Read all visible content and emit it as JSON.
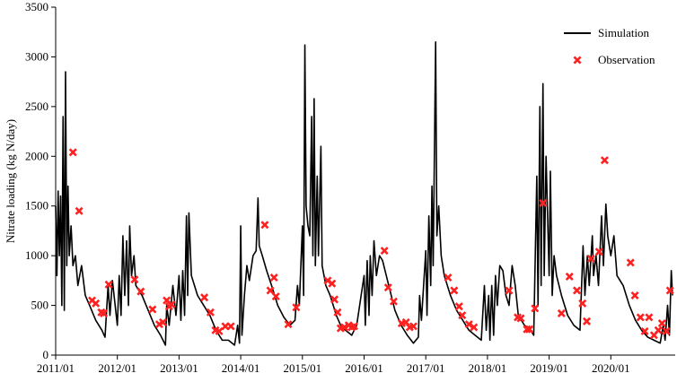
{
  "chart_data": {
    "type": "line",
    "y_label": "Nitrate loading (kg N/day)",
    "xlim": [
      2011,
      2021
    ],
    "xticks": [
      {
        "value": 2011,
        "label": "2011/01"
      },
      {
        "value": 2012,
        "label": "2012/01"
      },
      {
        "value": 2013,
        "label": "2013/01"
      },
      {
        "value": 2014,
        "label": "2014/01"
      },
      {
        "value": 2015,
        "label": "2015/01"
      },
      {
        "value": 2016,
        "label": "2016/01"
      },
      {
        "value": 2017,
        "label": "2017/01"
      },
      {
        "value": 2018,
        "label": "2018/01"
      },
      {
        "value": 2019,
        "label": "2019/01"
      },
      {
        "value": 2020,
        "label": "2020/01"
      }
    ],
    "ylim": [
      0,
      3500
    ],
    "yticks": [
      0,
      500,
      1000,
      1500,
      2000,
      2500,
      3000,
      3500
    ],
    "grid": false,
    "legend": "upper right",
    "series": [
      {
        "name": "Simulation",
        "color": "#000000",
        "mode": "line",
        "x": [
          2011.0,
          2011.02,
          2011.04,
          2011.06,
          2011.08,
          2011.1,
          2011.12,
          2011.14,
          2011.16,
          2011.18,
          2011.2,
          2011.22,
          2011.25,
          2011.28,
          2011.32,
          2011.36,
          2011.42,
          2011.48,
          2011.55,
          2011.65,
          2011.75,
          2011.8,
          2011.85,
          2011.88,
          2011.92,
          2012.0,
          2012.03,
          2012.06,
          2012.09,
          2012.12,
          2012.15,
          2012.18,
          2012.2,
          2012.23,
          2012.27,
          2012.3,
          2012.4,
          2012.5,
          2012.6,
          2012.7,
          2012.78,
          2012.8,
          2012.84,
          2012.9,
          2012.95,
          2013.0,
          2013.03,
          2013.06,
          2013.09,
          2013.12,
          2013.14,
          2013.16,
          2013.2,
          2013.25,
          2013.3,
          2013.4,
          2013.5,
          2013.6,
          2013.7,
          2013.8,
          2013.9,
          2013.95,
          2013.98,
          2014.0,
          2014.02,
          2014.06,
          2014.1,
          2014.14,
          2014.2,
          2014.25,
          2014.28,
          2014.3,
          2014.35,
          2014.42,
          2014.5,
          2014.6,
          2014.7,
          2014.8,
          2014.88,
          2014.92,
          2014.95,
          2015.0,
          2015.02,
          2015.04,
          2015.06,
          2015.09,
          2015.12,
          2015.15,
          2015.17,
          2015.19,
          2015.21,
          2015.24,
          2015.26,
          2015.3,
          2015.32,
          2015.38,
          2015.45,
          2015.55,
          2015.62,
          2015.7,
          2015.8,
          2015.88,
          2016.0,
          2016.02,
          2016.05,
          2016.08,
          2016.1,
          2016.13,
          2016.16,
          2016.2,
          2016.25,
          2016.3,
          2016.4,
          2016.5,
          2016.6,
          2016.7,
          2016.8,
          2016.88,
          2016.9,
          2016.93,
          2017.0,
          2017.02,
          2017.05,
          2017.08,
          2017.1,
          2017.12,
          2017.16,
          2017.18,
          2017.21,
          2017.25,
          2017.3,
          2017.4,
          2017.5,
          2017.6,
          2017.7,
          2017.8,
          2017.9,
          2017.95,
          2017.98,
          2018.02,
          2018.04,
          2018.07,
          2018.1,
          2018.13,
          2018.16,
          2018.2,
          2018.25,
          2018.3,
          2018.35,
          2018.4,
          2018.45,
          2018.5,
          2018.6,
          2018.7,
          2018.75,
          2018.8,
          2018.82,
          2018.85,
          2018.87,
          2018.9,
          2018.92,
          2018.95,
          2019.0,
          2019.02,
          2019.05,
          2019.08,
          2019.12,
          2019.2,
          2019.3,
          2019.4,
          2019.5,
          2019.55,
          2019.58,
          2019.62,
          2019.65,
          2019.7,
          2019.72,
          2019.76,
          2019.8,
          2019.85,
          2019.88,
          2019.92,
          2019.95,
          2020.0,
          2020.05,
          2020.1,
          2020.2,
          2020.3,
          2020.4,
          2020.5,
          2020.6,
          2020.7,
          2020.8,
          2020.85,
          2020.88,
          2020.92,
          2020.95,
          2020.98,
          2021.0
        ],
        "values": [
          1500,
          800,
          1650,
          1000,
          1600,
          500,
          2400,
          450,
          2850,
          900,
          1700,
          1000,
          1300,
          900,
          1000,
          700,
          900,
          600,
          500,
          350,
          250,
          180,
          700,
          400,
          750,
          300,
          800,
          400,
          1200,
          600,
          1150,
          500,
          1300,
          800,
          1000,
          700,
          600,
          450,
          300,
          200,
          100,
          500,
          300,
          700,
          400,
          800,
          350,
          850,
          400,
          1400,
          600,
          1430,
          800,
          700,
          600,
          500,
          400,
          250,
          150,
          150,
          100,
          300,
          120,
          1300,
          200,
          600,
          900,
          750,
          1000,
          1050,
          1580,
          1100,
          1000,
          850,
          700,
          500,
          380,
          300,
          350,
          700,
          500,
          1300,
          600,
          3120,
          1500,
          1300,
          1200,
          2400,
          1000,
          2580,
          900,
          1800,
          1000,
          2100,
          900,
          700,
          600,
          400,
          300,
          250,
          200,
          300,
          800,
          300,
          950,
          400,
          1000,
          600,
          1150,
          800,
          1000,
          950,
          700,
          450,
          300,
          200,
          120,
          180,
          600,
          350,
          1050,
          400,
          1400,
          700,
          1700,
          900,
          3150,
          1200,
          1500,
          1000,
          800,
          600,
          450,
          350,
          250,
          200,
          150,
          700,
          250,
          600,
          150,
          700,
          200,
          800,
          500,
          900,
          850,
          600,
          500,
          900,
          700,
          400,
          300,
          250,
          200,
          1800,
          500,
          2500,
          700,
          2730,
          800,
          2000,
          800,
          1850,
          600,
          1000,
          800,
          600,
          400,
          300,
          250,
          1100,
          600,
          1000,
          700,
          1200,
          800,
          1000,
          700,
          1400,
          900,
          1520,
          1200,
          1000,
          1200,
          800,
          700,
          500,
          350,
          250,
          180,
          150,
          120,
          300,
          150,
          500,
          200,
          850,
          600
        ]
      },
      {
        "name": "Observation",
        "color": "#ff2020",
        "mode": "markers",
        "x": [
          2011.28,
          2011.38,
          2011.59,
          2011.65,
          2011.74,
          2011.78,
          2011.86,
          2012.28,
          2012.38,
          2012.57,
          2012.68,
          2012.74,
          2012.8,
          2012.84,
          2012.88,
          2013.41,
          2013.51,
          2013.59,
          2013.65,
          2013.75,
          2013.84,
          2014.39,
          2014.48,
          2014.54,
          2014.57,
          2014.77,
          2014.9,
          2015.41,
          2015.48,
          2015.52,
          2015.57,
          2015.62,
          2015.68,
          2015.75,
          2015.8,
          2015.84,
          2016.33,
          2016.39,
          2016.48,
          2016.61,
          2016.68,
          2016.74,
          2016.8,
          2017.36,
          2017.46,
          2017.54,
          2017.59,
          2017.7,
          2017.78,
          2018.35,
          2018.49,
          2018.54,
          2018.64,
          2018.68,
          2018.77,
          2018.9,
          2019.2,
          2019.33,
          2019.45,
          2019.54,
          2019.61,
          2019.68,
          2019.81,
          2019.9,
          2020.32,
          2020.39,
          2020.48,
          2020.55,
          2020.62,
          2020.7,
          2020.77,
          2020.83,
          2020.9,
          2020.96
        ],
        "values": [
          2040,
          1450,
          550,
          520,
          430,
          420,
          710,
          760,
          640,
          460,
          310,
          330,
          550,
          490,
          510,
          580,
          430,
          250,
          240,
          290,
          290,
          1310,
          650,
          780,
          590,
          310,
          480,
          750,
          720,
          560,
          430,
          270,
          280,
          300,
          280,
          290,
          1050,
          680,
          540,
          320,
          330,
          280,
          290,
          780,
          650,
          490,
          400,
          310,
          280,
          650,
          380,
          370,
          260,
          260,
          470,
          1530,
          420,
          790,
          650,
          520,
          340,
          970,
          1040,
          1960,
          930,
          600,
          380,
          240,
          380,
          200,
          250,
          320,
          240,
          650
        ]
      }
    ]
  }
}
